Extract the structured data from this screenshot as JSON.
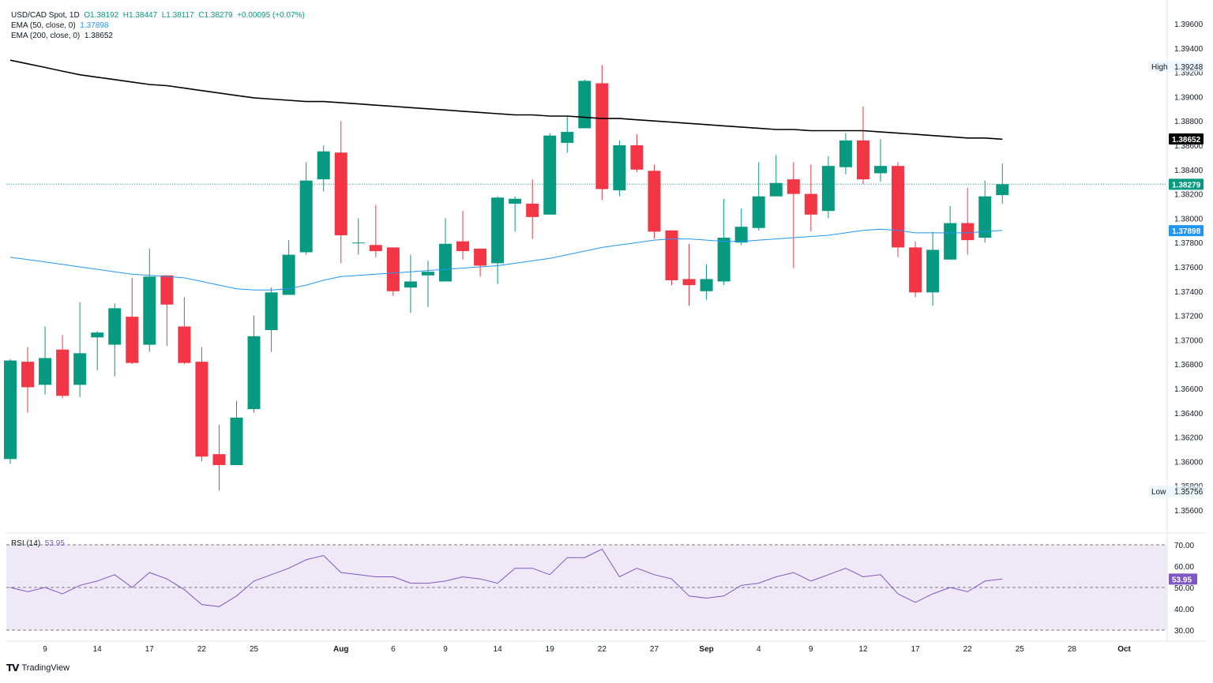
{
  "legend": {
    "symbol": "USD/CAD Spot, 1D",
    "open": "O1.38192",
    "high": "H1.38447",
    "low": "L1.38117",
    "close": "C1.38279",
    "change": "+0.00095 (+0.07%)",
    "ema50_label": "EMA (50, close, 0)",
    "ema50_value": "1.37898",
    "ema200_label": "EMA (200, close, 0)",
    "ema200_value": "1.38652"
  },
  "rsi_legend": {
    "label": "RSI (14)",
    "value": "53.95"
  },
  "footer": {
    "logo_text": "TradingView"
  },
  "colors": {
    "up": "#089981",
    "down": "#f23645",
    "ema50": "#2196f3",
    "ema200": "#000000",
    "rsi_line": "#7e57c2",
    "rsi_band": "#ede7f6"
  },
  "chart_data": {
    "type": "candlestick",
    "y_axis": {
      "range": [
        1.355,
        1.398
      ],
      "ticks": [
        "1.35600",
        "1.35800",
        "1.36000",
        "1.36200",
        "1.36400",
        "1.36600",
        "1.36800",
        "1.37000",
        "1.37200",
        "1.37400",
        "1.37600",
        "1.37800",
        "1.38000",
        "1.38200",
        "1.38400",
        "1.38600",
        "1.38800",
        "1.39000",
        "1.39200",
        "1.39400",
        "1.39600"
      ]
    },
    "x_axis": {
      "ticks": [
        {
          "label": "9",
          "i": 2
        },
        {
          "label": "14",
          "i": 5
        },
        {
          "label": "17",
          "i": 8
        },
        {
          "label": "22",
          "i": 11
        },
        {
          "label": "25",
          "i": 14
        },
        {
          "label": "Aug",
          "i": 19
        },
        {
          "label": "6",
          "i": 22
        },
        {
          "label": "9",
          "i": 25
        },
        {
          "label": "14",
          "i": 28
        },
        {
          "label": "19",
          "i": 31
        },
        {
          "label": "22",
          "i": 34
        },
        {
          "label": "27",
          "i": 37
        },
        {
          "label": "Sep",
          "i": 40
        },
        {
          "label": "4",
          "i": 43
        },
        {
          "label": "9",
          "i": 46
        },
        {
          "label": "12",
          "i": 49
        },
        {
          "label": "17",
          "i": 52
        },
        {
          "label": "22",
          "i": 55
        },
        {
          "label": "25",
          "i": 58
        },
        {
          "label": "28",
          "i": 61
        },
        {
          "label": "Oct",
          "i": 64
        }
      ]
    },
    "candles": [
      {
        "o": 1.3602,
        "h": 1.3684,
        "l": 1.3598,
        "c": 1.3683
      },
      {
        "o": 1.3682,
        "h": 1.3694,
        "l": 1.364,
        "c": 1.3661
      },
      {
        "o": 1.3663,
        "h": 1.3711,
        "l": 1.3655,
        "c": 1.3685
      },
      {
        "o": 1.3692,
        "h": 1.3704,
        "l": 1.3652,
        "c": 1.3654
      },
      {
        "o": 1.3663,
        "h": 1.3731,
        "l": 1.3653,
        "c": 1.3689
      },
      {
        "o": 1.3702,
        "h": 1.3707,
        "l": 1.3675,
        "c": 1.3706
      },
      {
        "o": 1.3696,
        "h": 1.373,
        "l": 1.367,
        "c": 1.3726
      },
      {
        "o": 1.3719,
        "h": 1.3751,
        "l": 1.368,
        "c": 1.3681
      },
      {
        "o": 1.3696,
        "h": 1.3775,
        "l": 1.369,
        "c": 1.3752
      },
      {
        "o": 1.3753,
        "h": 1.3753,
        "l": 1.3695,
        "c": 1.3729
      },
      {
        "o": 1.3711,
        "h": 1.3735,
        "l": 1.368,
        "c": 1.3681
      },
      {
        "o": 1.3682,
        "h": 1.3694,
        "l": 1.36,
        "c": 1.3604
      },
      {
        "o": 1.3606,
        "h": 1.363,
        "l": 1.3576,
        "c": 1.3597
      },
      {
        "o": 1.3597,
        "h": 1.365,
        "l": 1.3597,
        "c": 1.3636
      },
      {
        "o": 1.3643,
        "h": 1.372,
        "l": 1.364,
        "c": 1.3703
      },
      {
        "o": 1.3708,
        "h": 1.3743,
        "l": 1.369,
        "c": 1.3739
      },
      {
        "o": 1.3737,
        "h": 1.3782,
        "l": 1.3737,
        "c": 1.377
      },
      {
        "o": 1.3772,
        "h": 1.3846,
        "l": 1.377,
        "c": 1.3831
      },
      {
        "o": 1.3832,
        "h": 1.386,
        "l": 1.3822,
        "c": 1.3855
      },
      {
        "o": 1.3854,
        "h": 1.388,
        "l": 1.3763,
        "c": 1.3786
      },
      {
        "o": 1.378,
        "h": 1.38,
        "l": 1.377,
        "c": 1.378
      },
      {
        "o": 1.3778,
        "h": 1.3811,
        "l": 1.3768,
        "c": 1.3773
      },
      {
        "o": 1.3776,
        "h": 1.3776,
        "l": 1.3736,
        "c": 1.374
      },
      {
        "o": 1.3743,
        "h": 1.377,
        "l": 1.3722,
        "c": 1.3748
      },
      {
        "o": 1.3753,
        "h": 1.3765,
        "l": 1.3727,
        "c": 1.3756
      },
      {
        "o": 1.3748,
        "h": 1.38,
        "l": 1.3748,
        "c": 1.3779
      },
      {
        "o": 1.3781,
        "h": 1.3806,
        "l": 1.3766,
        "c": 1.3773
      },
      {
        "o": 1.3775,
        "h": 1.3775,
        "l": 1.3752,
        "c": 1.3761
      },
      {
        "o": 1.3763,
        "h": 1.3818,
        "l": 1.3746,
        "c": 1.3817
      },
      {
        "o": 1.3812,
        "h": 1.3818,
        "l": 1.3789,
        "c": 1.3816
      },
      {
        "o": 1.3812,
        "h": 1.3832,
        "l": 1.3783,
        "c": 1.3801
      },
      {
        "o": 1.3803,
        "h": 1.387,
        "l": 1.3803,
        "c": 1.3868
      },
      {
        "o": 1.3862,
        "h": 1.3884,
        "l": 1.3854,
        "c": 1.3871
      },
      {
        "o": 1.3874,
        "h": 1.3914,
        "l": 1.3874,
        "c": 1.3913
      },
      {
        "o": 1.3911,
        "h": 1.3926,
        "l": 1.3815,
        "c": 1.3824
      },
      {
        "o": 1.3823,
        "h": 1.3864,
        "l": 1.3818,
        "c": 1.386
      },
      {
        "o": 1.386,
        "h": 1.3869,
        "l": 1.3838,
        "c": 1.384
      },
      {
        "o": 1.3839,
        "h": 1.3844,
        "l": 1.3783,
        "c": 1.3789
      },
      {
        "o": 1.379,
        "h": 1.379,
        "l": 1.3745,
        "c": 1.3749
      },
      {
        "o": 1.375,
        "h": 1.3779,
        "l": 1.3728,
        "c": 1.3745
      },
      {
        "o": 1.374,
        "h": 1.3762,
        "l": 1.3733,
        "c": 1.375
      },
      {
        "o": 1.3748,
        "h": 1.3816,
        "l": 1.3745,
        "c": 1.3784
      },
      {
        "o": 1.378,
        "h": 1.3808,
        "l": 1.3778,
        "c": 1.3793
      },
      {
        "o": 1.3792,
        "h": 1.3846,
        "l": 1.379,
        "c": 1.3818
      },
      {
        "o": 1.3818,
        "h": 1.3852,
        "l": 1.3818,
        "c": 1.3829
      },
      {
        "o": 1.3832,
        "h": 1.3846,
        "l": 1.3759,
        "c": 1.382
      },
      {
        "o": 1.382,
        "h": 1.3844,
        "l": 1.3789,
        "c": 1.3803
      },
      {
        "o": 1.3806,
        "h": 1.3851,
        "l": 1.38,
        "c": 1.3843
      },
      {
        "o": 1.3842,
        "h": 1.387,
        "l": 1.3836,
        "c": 1.3864
      },
      {
        "o": 1.3864,
        "h": 1.3892,
        "l": 1.3828,
        "c": 1.3832
      },
      {
        "o": 1.3837,
        "h": 1.3865,
        "l": 1.383,
        "c": 1.3843
      },
      {
        "o": 1.3843,
        "h": 1.3846,
        "l": 1.3768,
        "c": 1.3776
      },
      {
        "o": 1.3776,
        "h": 1.3781,
        "l": 1.3735,
        "c": 1.3739
      },
      {
        "o": 1.3739,
        "h": 1.3789,
        "l": 1.3728,
        "c": 1.3774
      },
      {
        "o": 1.3766,
        "h": 1.381,
        "l": 1.3766,
        "c": 1.3796
      },
      {
        "o": 1.3796,
        "h": 1.3825,
        "l": 1.377,
        "c": 1.3782
      },
      {
        "o": 1.3784,
        "h": 1.3831,
        "l": 1.378,
        "c": 1.3818
      },
      {
        "o": 1.3819,
        "h": 1.3845,
        "l": 1.3812,
        "c": 1.3828
      }
    ],
    "ema50": [
      1.3768,
      1.3766,
      1.3764,
      1.3762,
      1.376,
      1.3758,
      1.3756,
      1.3754,
      1.3753,
      1.3752,
      1.3751,
      1.3748,
      1.3745,
      1.3742,
      1.3741,
      1.3741,
      1.3742,
      1.3745,
      1.3749,
      1.3752,
      1.3753,
      1.3754,
      1.3755,
      1.3756,
      1.3757,
      1.3758,
      1.3759,
      1.376,
      1.3761,
      1.3763,
      1.3765,
      1.3767,
      1.377,
      1.3773,
      1.3776,
      1.3778,
      1.378,
      1.3782,
      1.3783,
      1.3783,
      1.3782,
      1.3781,
      1.3781,
      1.3782,
      1.3783,
      1.3784,
      1.3785,
      1.3786,
      1.3788,
      1.379,
      1.3791,
      1.379,
      1.3788,
      1.3788,
      1.3788,
      1.3788,
      1.3789,
      1.379
    ],
    "ema200": [
      1.393,
      1.3927,
      1.3924,
      1.3921,
      1.3918,
      1.3916,
      1.3914,
      1.3912,
      1.391,
      1.3909,
      1.3907,
      1.3905,
      1.3903,
      1.3901,
      1.3899,
      1.3898,
      1.3897,
      1.3896,
      1.3896,
      1.3895,
      1.3894,
      1.3893,
      1.3892,
      1.3891,
      1.389,
      1.3889,
      1.3888,
      1.3887,
      1.3886,
      1.3885,
      1.3885,
      1.3884,
      1.3884,
      1.3883,
      1.3882,
      1.3882,
      1.3881,
      1.388,
      1.3879,
      1.3878,
      1.3877,
      1.3876,
      1.3875,
      1.3874,
      1.3873,
      1.3873,
      1.3872,
      1.3872,
      1.3872,
      1.3872,
      1.3871,
      1.387,
      1.3869,
      1.3868,
      1.3867,
      1.3866,
      1.3866,
      1.3865
    ],
    "price_labels": {
      "high_label": "High",
      "high_value": "1.39248",
      "low_label": "Low",
      "low_value": "1.35756",
      "ema200_tag": "1.38652",
      "close_tag": "1.38279",
      "ema50_tag": "1.37898"
    },
    "rsi": {
      "range": [
        25,
        75
      ],
      "ticks": [
        "30.00",
        "40.00",
        "50.00",
        "60.00",
        "70.00"
      ],
      "levels": [
        30,
        50,
        70
      ],
      "tag": "53.95",
      "values": [
        50,
        48,
        50,
        47,
        51,
        53,
        56,
        50,
        57,
        54,
        49,
        42,
        41,
        46,
        53,
        56,
        59,
        63,
        65,
        57,
        56,
        55,
        55,
        52,
        52,
        53,
        55,
        54,
        52,
        59,
        59,
        56,
        64,
        64,
        68,
        55,
        59,
        56,
        54,
        46,
        45,
        46,
        51,
        52,
        55,
        57,
        53,
        56,
        59,
        55,
        56,
        47,
        43,
        47,
        50,
        48,
        53,
        54
      ]
    }
  }
}
